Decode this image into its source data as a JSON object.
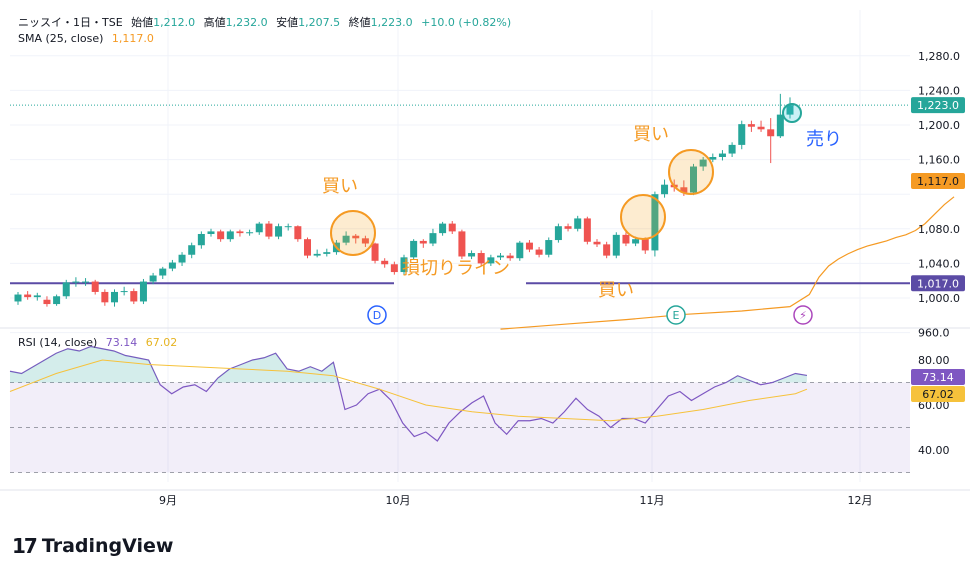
{
  "header": {
    "symbol": "ニッスイ・1日・TSE",
    "open_label": "始値",
    "open": "1,212.0",
    "high_label": "高値",
    "high": "1,232.0",
    "low_label": "安値",
    "low": "1,207.5",
    "close_label": "終値",
    "close": "1,223.0",
    "change": "+10.0 (+0.82%)",
    "sma_label": "SMA (25, close)",
    "sma_value": "1,117.0",
    "rsi_label": "RSI (14, close)",
    "rsi_value": "73.14",
    "rsi_ma_value": "67.02"
  },
  "colors": {
    "up": "#26a69a",
    "down": "#ef5350",
    "sma": "#f59a23",
    "rsi": "#7e57c2",
    "rsi_ma": "#f6c23b",
    "support": "#5b4ba5",
    "annotation": "#f59a23",
    "sell_annotation": "#2962ff"
  },
  "annotations": {
    "buy1": "買い",
    "buy2": "買い",
    "buy3": "買い",
    "sell": "売り",
    "stop_line": "損切りライン"
  },
  "event_icons": [
    "D",
    "E",
    "⚡"
  ],
  "branding": {
    "name": "TradingView"
  },
  "chart_data": [
    {
      "type": "candlestick",
      "title": "ニッスイ・1日・TSE",
      "x_ticks": [
        "9月",
        "10月",
        "11月",
        "12月"
      ],
      "y_ticks": [
        960,
        1000,
        1040,
        1080,
        1120,
        1160,
        1200,
        1240,
        1280
      ],
      "ylim": [
        950,
        1300
      ],
      "y_labels": [
        "960.0",
        "1,000.0",
        "1,040.0",
        "1,080.0",
        "1,160.0",
        "1,200.0",
        "1,240.0",
        "1,280.0"
      ],
      "price_tags": {
        "last": "1,223.0",
        "sma": "1,117.0",
        "support": "1,017.0"
      },
      "last_price": 1223.0,
      "support_level": 1017.0,
      "candles": [
        [
          996,
          1004,
          992,
          1007
        ],
        [
          1004,
          1001,
          998,
          1008
        ],
        [
          1001,
          1003,
          997,
          1006
        ],
        [
          998,
          993,
          990,
          1002
        ],
        [
          993,
          1002,
          991,
          1004
        ],
        [
          1002,
          1018,
          999,
          1021
        ],
        [
          1018,
          1019,
          1013,
          1024
        ],
        [
          1019,
          1019,
          1014,
          1023
        ],
        [
          1019,
          1007,
          1004,
          1021
        ],
        [
          1007,
          995,
          991,
          1010
        ],
        [
          995,
          1007,
          990,
          1010
        ],
        [
          1007,
          1008,
          1003,
          1013
        ],
        [
          1008,
          996,
          993,
          1011
        ],
        [
          996,
          1019,
          993,
          1022
        ],
        [
          1019,
          1026,
          1016,
          1029
        ],
        [
          1026,
          1034,
          1022,
          1036
        ],
        [
          1034,
          1041,
          1031,
          1044
        ],
        [
          1041,
          1050,
          1037,
          1053
        ],
        [
          1050,
          1061,
          1046,
          1064
        ],
        [
          1061,
          1074,
          1057,
          1077
        ],
        [
          1074,
          1077,
          1071,
          1080
        ],
        [
          1077,
          1068,
          1065,
          1079
        ],
        [
          1068,
          1077,
          1065,
          1079
        ],
        [
          1077,
          1075,
          1071,
          1079
        ],
        [
          1075,
          1076,
          1072,
          1079
        ],
        [
          1076,
          1086,
          1073,
          1088
        ],
        [
          1086,
          1071,
          1068,
          1089
        ],
        [
          1071,
          1083,
          1068,
          1086
        ],
        [
          1083,
          1083,
          1078,
          1086
        ],
        [
          1083,
          1068,
          1065,
          1084
        ],
        [
          1068,
          1049,
          1046,
          1070
        ],
        [
          1049,
          1051,
          1047,
          1056
        ],
        [
          1051,
          1053,
          1048,
          1057
        ],
        [
          1053,
          1064,
          1050,
          1067
        ],
        [
          1064,
          1072,
          1061,
          1077
        ],
        [
          1072,
          1069,
          1063,
          1074
        ],
        [
          1069,
          1063,
          1059,
          1072
        ],
        [
          1063,
          1043,
          1040,
          1064
        ],
        [
          1043,
          1039,
          1035,
          1046
        ],
        [
          1039,
          1030,
          1027,
          1042
        ],
        [
          1030,
          1047,
          1027,
          1050
        ],
        [
          1047,
          1066,
          1044,
          1068
        ],
        [
          1066,
          1063,
          1058,
          1068
        ],
        [
          1063,
          1075,
          1060,
          1080
        ],
        [
          1075,
          1086,
          1072,
          1088
        ],
        [
          1086,
          1077,
          1074,
          1089
        ],
        [
          1077,
          1048,
          1045,
          1079
        ],
        [
          1048,
          1052,
          1045,
          1055
        ],
        [
          1052,
          1040,
          1037,
          1055
        ],
        [
          1040,
          1047,
          1037,
          1050
        ],
        [
          1047,
          1049,
          1044,
          1052
        ],
        [
          1049,
          1046,
          1043,
          1052
        ],
        [
          1046,
          1064,
          1043,
          1066
        ],
        [
          1064,
          1056,
          1053,
          1067
        ],
        [
          1056,
          1050,
          1047,
          1059
        ],
        [
          1050,
          1067,
          1047,
          1070
        ],
        [
          1067,
          1083,
          1064,
          1086
        ],
        [
          1083,
          1080,
          1077,
          1086
        ],
        [
          1080,
          1092,
          1077,
          1095
        ],
        [
          1092,
          1065,
          1062,
          1094
        ],
        [
          1065,
          1062,
          1059,
          1068
        ],
        [
          1062,
          1049,
          1046,
          1065
        ],
        [
          1049,
          1073,
          1046,
          1076
        ],
        [
          1073,
          1063,
          1060,
          1076
        ],
        [
          1063,
          1068,
          1060,
          1071
        ],
        [
          1068,
          1055,
          1051,
          1070
        ],
        [
          1055,
          1120,
          1048,
          1123
        ],
        [
          1120,
          1131,
          1116,
          1137
        ],
        [
          1131,
          1128,
          1123,
          1137
        ],
        [
          1128,
          1122,
          1118,
          1136
        ],
        [
          1122,
          1152,
          1119,
          1155
        ],
        [
          1152,
          1160,
          1147,
          1163
        ],
        [
          1160,
          1163,
          1157,
          1167
        ],
        [
          1163,
          1167,
          1159,
          1171
        ],
        [
          1167,
          1177,
          1163,
          1180
        ],
        [
          1177,
          1201,
          1172,
          1205
        ],
        [
          1201,
          1198,
          1192,
          1205
        ],
        [
          1198,
          1195,
          1192,
          1205
        ],
        [
          1195,
          1187,
          1156,
          1208
        ],
        [
          1187,
          1212,
          1185,
          1236
        ],
        [
          1212,
          1223,
          1207.5,
          1232
        ]
      ],
      "sma": [
        [
          14,
          925
        ],
        [
          20,
          932
        ],
        [
          26,
          937
        ],
        [
          32,
          942
        ],
        [
          38,
          948
        ],
        [
          44,
          956
        ],
        [
          50,
          964
        ],
        [
          57,
          970
        ],
        [
          63,
          975
        ],
        [
          69,
          981
        ],
        [
          75,
          985
        ],
        [
          80,
          990
        ],
        [
          82,
          1004
        ],
        [
          83,
          1024
        ],
        [
          84,
          1037
        ],
        [
          85,
          1045
        ],
        [
          86,
          1051
        ],
        [
          87,
          1056
        ],
        [
          88,
          1060
        ],
        [
          89,
          1063
        ],
        [
          90,
          1066
        ],
        [
          91,
          1070
        ],
        [
          92,
          1073
        ],
        [
          93,
          1078
        ],
        [
          94,
          1086
        ],
        [
          95,
          1097
        ],
        [
          96,
          1108
        ],
        [
          97,
          1117
        ]
      ],
      "rsi": {
        "label": "RSI (14, close)",
        "y_ticks": [
          40,
          60,
          80
        ],
        "y_labels": [
          "40.00",
          "60.00",
          "80.00"
        ],
        "bands": [
          30,
          50,
          70
        ],
        "ylim": [
          28,
          87
        ],
        "values": [
          [
            0,
            75
          ],
          [
            1,
            74
          ],
          [
            2,
            77
          ],
          [
            3,
            80
          ],
          [
            4,
            83
          ],
          [
            5,
            85
          ],
          [
            6,
            84
          ],
          [
            7,
            86
          ],
          [
            8,
            85
          ],
          [
            9,
            84
          ],
          [
            10,
            82
          ],
          [
            11,
            81
          ],
          [
            12,
            80
          ],
          [
            13,
            69
          ],
          [
            14,
            65
          ],
          [
            15,
            68
          ],
          [
            16,
            69
          ],
          [
            17,
            66
          ],
          [
            18,
            72
          ],
          [
            19,
            76
          ],
          [
            20,
            78
          ],
          [
            21,
            80
          ],
          [
            22,
            81
          ],
          [
            23,
            83
          ],
          [
            24,
            76
          ],
          [
            25,
            75
          ],
          [
            26,
            77
          ],
          [
            27,
            75
          ],
          [
            28,
            79
          ],
          [
            29,
            58
          ],
          [
            30,
            60
          ],
          [
            31,
            65
          ],
          [
            32,
            67
          ],
          [
            33,
            62
          ],
          [
            34,
            52
          ],
          [
            35,
            46
          ],
          [
            36,
            48
          ],
          [
            37,
            44
          ],
          [
            38,
            52
          ],
          [
            39,
            57
          ],
          [
            40,
            61
          ],
          [
            41,
            64
          ],
          [
            42,
            52
          ],
          [
            43,
            47
          ],
          [
            44,
            53
          ],
          [
            45,
            53
          ],
          [
            46,
            54
          ],
          [
            47,
            52
          ],
          [
            48,
            57
          ],
          [
            49,
            63
          ],
          [
            50,
            58
          ],
          [
            51,
            55
          ],
          [
            52,
            50
          ],
          [
            53,
            54
          ],
          [
            54,
            54
          ],
          [
            55,
            52
          ],
          [
            56,
            58
          ],
          [
            57,
            64
          ],
          [
            58,
            66
          ],
          [
            59,
            62
          ],
          [
            60,
            65
          ],
          [
            61,
            68
          ],
          [
            62,
            70
          ],
          [
            63,
            73
          ],
          [
            64,
            71
          ],
          [
            65,
            69
          ],
          [
            66,
            70
          ],
          [
            67,
            72
          ],
          [
            68,
            74
          ],
          [
            69,
            73.14
          ]
        ],
        "ma": [
          [
            0,
            66
          ],
          [
            4,
            74
          ],
          [
            8,
            80
          ],
          [
            12,
            78
          ],
          [
            16,
            77
          ],
          [
            20,
            76
          ],
          [
            24,
            75
          ],
          [
            28,
            73
          ],
          [
            32,
            67
          ],
          [
            36,
            60
          ],
          [
            40,
            57
          ],
          [
            44,
            55
          ],
          [
            48,
            54
          ],
          [
            52,
            53
          ],
          [
            56,
            55
          ],
          [
            60,
            58
          ],
          [
            64,
            62
          ],
          [
            68,
            65
          ],
          [
            69,
            67.02
          ]
        ],
        "ma_value": 67.02
      }
    }
  ]
}
